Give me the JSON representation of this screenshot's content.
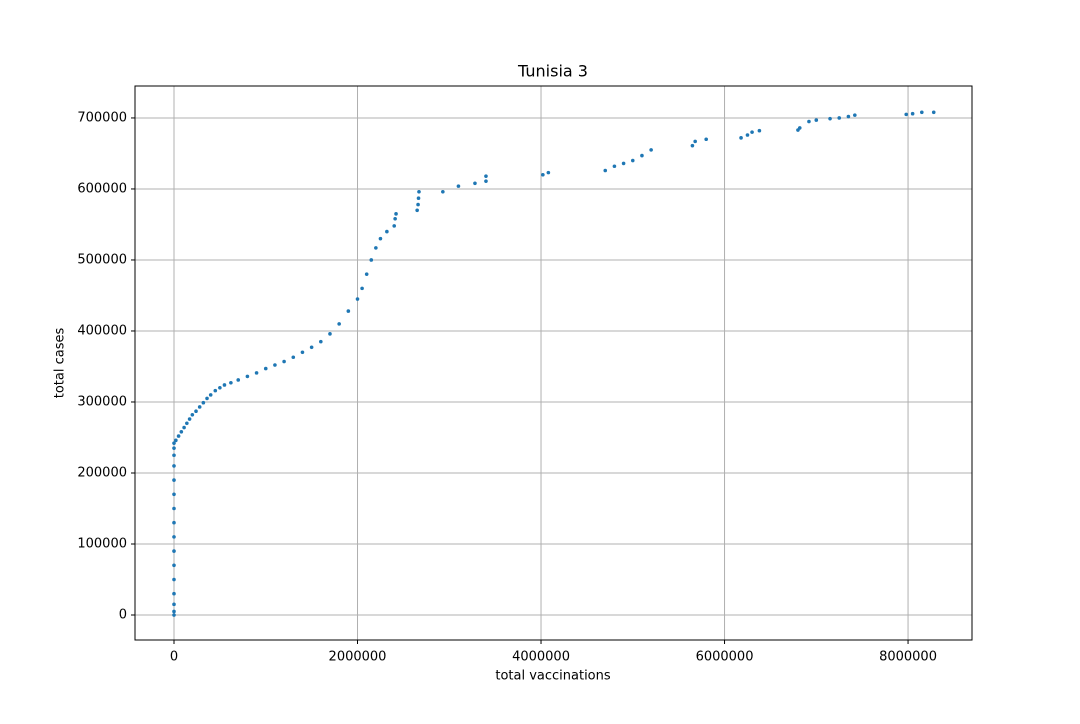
{
  "chart_data": {
    "type": "scatter",
    "title": "Tunisia 3",
    "x_label": "total vaccinations",
    "y_label": "total cases",
    "color": "#1f77b4",
    "grid": true,
    "xlim": [
      -425000,
      8697000
    ],
    "ylim": [
      -35200,
      745000
    ],
    "xticks": [
      0,
      2000000,
      4000000,
      6000000,
      8000000
    ],
    "yticks": [
      0,
      100000,
      200000,
      300000,
      400000,
      500000,
      600000,
      700000
    ],
    "x": [
      0,
      0,
      0,
      0,
      0,
      0,
      0,
      0,
      0,
      0,
      0,
      0,
      0,
      0,
      0,
      0,
      20000,
      50000,
      80000,
      110000,
      140000,
      170000,
      200000,
      240000,
      280000,
      320000,
      360000,
      400000,
      450000,
      500000,
      550000,
      620000,
      700000,
      800000,
      900000,
      1000000,
      1100000,
      1200000,
      1300000,
      1400000,
      1500000,
      1600000,
      1700000,
      1800000,
      1900000,
      2000000,
      2050000,
      2100000,
      2150000,
      2200000,
      2250000,
      2320000,
      2400000,
      2410000,
      2420000,
      2650000,
      2660000,
      2665000,
      2670000,
      2930000,
      3100000,
      3280000,
      3400000,
      3400000,
      4020000,
      4080000,
      4700000,
      4800000,
      4900000,
      5000000,
      5100000,
      5200000,
      5650000,
      5680000,
      5800000,
      6180000,
      6250000,
      6300000,
      6380000,
      6800000,
      6820000,
      6920000,
      7000000,
      7150000,
      7250000,
      7350000,
      7420000,
      7980000,
      8050000,
      8150000,
      8280000
    ],
    "y": [
      0,
      5000,
      15000,
      30000,
      50000,
      70000,
      90000,
      110000,
      130000,
      150000,
      170000,
      190000,
      210000,
      225000,
      235000,
      242000,
      246000,
      252000,
      258000,
      264000,
      270000,
      276000,
      282000,
      287000,
      293000,
      299000,
      305000,
      310000,
      316000,
      320000,
      324000,
      327000,
      331000,
      336000,
      341000,
      347000,
      352000,
      357000,
      363000,
      370000,
      377000,
      385000,
      396000,
      410000,
      428000,
      445000,
      460000,
      480000,
      500000,
      517000,
      530000,
      540000,
      548000,
      558000,
      565000,
      570000,
      578000,
      587000,
      596000,
      596000,
      604000,
      608000,
      611000,
      618000,
      620000,
      623000,
      626000,
      632000,
      636000,
      640000,
      647000,
      655000,
      661000,
      667000,
      670000,
      672000,
      676000,
      680000,
      682000,
      683000,
      686000,
      695000,
      697000,
      699000,
      700000,
      702000,
      704000,
      705000,
      706000,
      708000,
      708000
    ]
  }
}
